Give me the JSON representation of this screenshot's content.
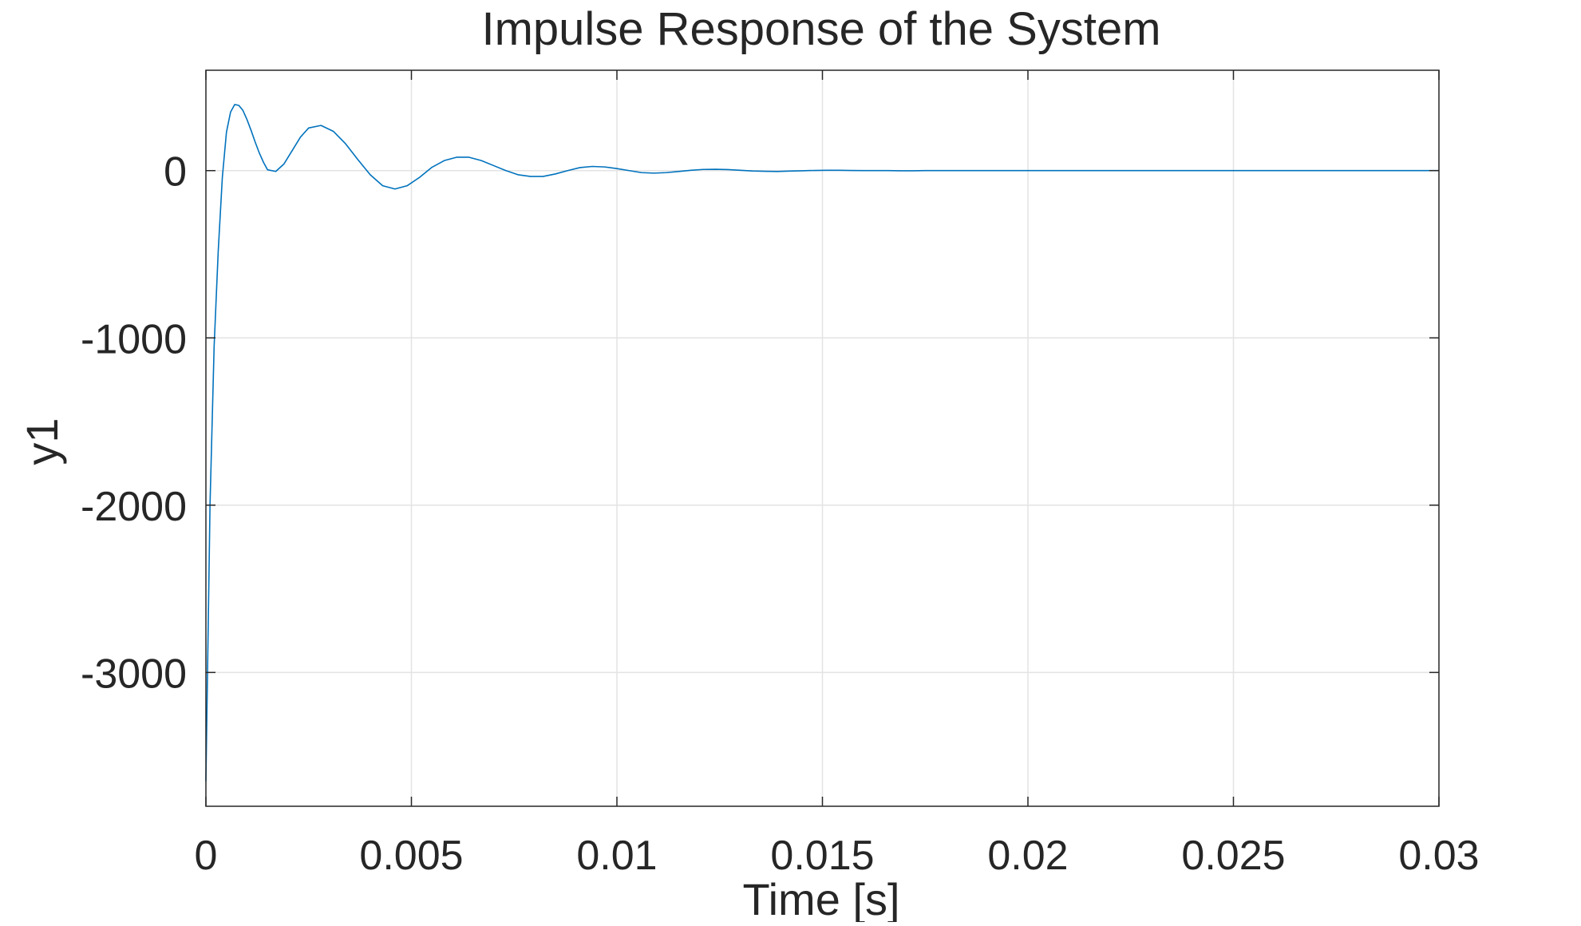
{
  "chart_data": {
    "type": "line",
    "title": "Impulse Response of the System",
    "xlabel": "Time [s]",
    "ylabel": "y1",
    "xlim": [
      0,
      0.03
    ],
    "ylim": [
      -3800,
      600
    ],
    "xticks": [
      0,
      0.005,
      0.01,
      0.015,
      0.02,
      0.025,
      0.03
    ],
    "xtick_labels": [
      "0",
      "0.005",
      "0.01",
      "0.015",
      "0.02",
      "0.025",
      "0.03"
    ],
    "yticks": [
      0,
      -1000,
      -2000,
      -3000
    ],
    "ytick_labels": [
      "0",
      "-1000",
      "-2000",
      "-3000"
    ],
    "grid": true,
    "series": [
      {
        "color": "#0072BD",
        "x": [
          0,
          0.0001,
          0.0002,
          0.0003,
          0.0004,
          0.0005,
          0.0006,
          0.0007,
          0.0008,
          0.0009,
          0.001,
          0.0011,
          0.0012,
          0.0013,
          0.0014,
          0.0015,
          0.0017,
          0.0019,
          0.0021,
          0.0023,
          0.0025,
          0.0028,
          0.0031,
          0.0034,
          0.0037,
          0.004,
          0.0043,
          0.0046,
          0.0049,
          0.0052,
          0.0055,
          0.0058,
          0.0061,
          0.0064,
          0.0067,
          0.007,
          0.0073,
          0.0076,
          0.0079,
          0.0082,
          0.0085,
          0.0088,
          0.0091,
          0.0094,
          0.0097,
          0.01,
          0.0103,
          0.0106,
          0.0109,
          0.0112,
          0.0115,
          0.0118,
          0.0121,
          0.0124,
          0.0127,
          0.013,
          0.0133,
          0.0136,
          0.0139,
          0.0142,
          0.0145,
          0.0148,
          0.0151,
          0.0154,
          0.0157,
          0.016,
          0.0163,
          0.0166,
          0.0169,
          0.0172,
          0.0175,
          0.0178,
          0.0181,
          0.0184,
          0.0187,
          0.019,
          0.0195,
          0.02,
          0.0205,
          0.021,
          0.0215,
          0.022,
          0.0225,
          0.023,
          0.0235,
          0.024,
          0.0245,
          0.025,
          0.0255,
          0.026,
          0.0265,
          0.027,
          0.0275,
          0.028,
          0.0285,
          0.029,
          0.0295,
          0.03
        ],
        "y": [
          -3650,
          -2000,
          -1050,
          -480,
          -40,
          230,
          350,
          395,
          390,
          360,
          305,
          240,
          170,
          105,
          50,
          5,
          -5,
          40,
          120,
          200,
          255,
          270,
          235,
          160,
          65,
          -25,
          -90,
          -110,
          -90,
          -40,
          20,
          60,
          80,
          80,
          60,
          30,
          0,
          -25,
          -35,
          -35,
          -20,
          0,
          18,
          25,
          22,
          12,
          0,
          -12,
          -15,
          -12,
          -5,
          2,
          7,
          8,
          6,
          2,
          -2,
          -4,
          -5,
          -3,
          -1,
          1,
          2,
          2,
          1,
          0,
          0,
          0,
          -1,
          -1,
          0,
          0,
          0,
          0,
          0,
          0,
          0,
          0,
          0,
          0,
          0,
          0,
          0,
          0,
          0,
          0,
          0,
          0,
          0,
          0,
          0,
          0,
          0,
          0,
          0,
          0,
          0,
          0
        ]
      }
    ]
  }
}
